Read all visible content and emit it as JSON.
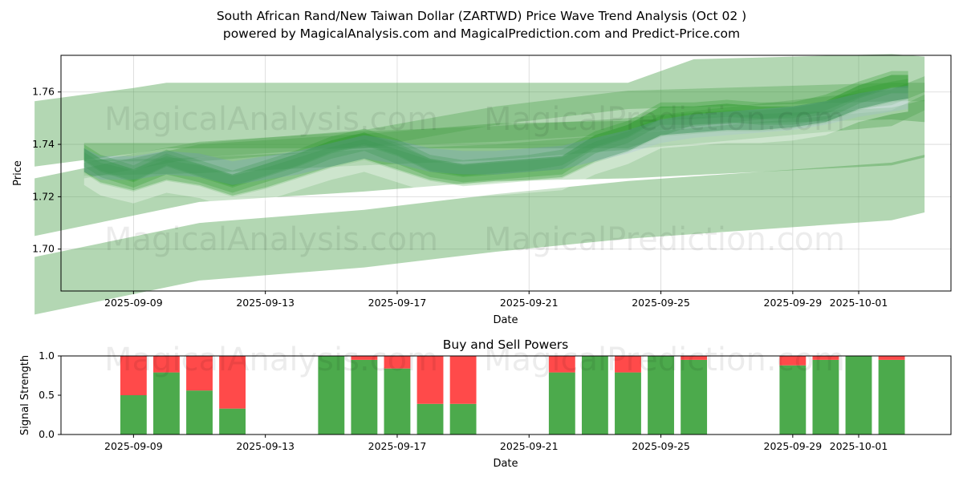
{
  "title_line1": "South African Rand/New Taiwan Dollar (ZARTWD) Price Wave Trend Analysis (Oct 02 )",
  "title_line2": "powered by MagicalAnalysis.com and MagicalPrediction.com and Predict-Price.com",
  "watermarks": [
    "MagicalAnalysis.com",
    "MagicalPrediction.com"
  ],
  "colors": {
    "band": "#2e9a2e",
    "light_band": "#4aa04a",
    "blue": "#6f8fd0",
    "buy": "#4caa4c",
    "sell": "#ff4a4a"
  },
  "chart_data": [
    {
      "type": "area",
      "title": "South African Rand/New Taiwan Dollar (ZARTWD) Price Wave Trend Analysis (Oct 02 )",
      "xlabel": "Date",
      "ylabel": "Price",
      "ylim": [
        1.684,
        1.774
      ],
      "xlim": [
        -1.2,
        25.8
      ],
      "x_ticks": [
        {
          "day": 1,
          "label": "2025-09-09"
        },
        {
          "day": 5,
          "label": "2025-09-13"
        },
        {
          "day": 9,
          "label": "2025-09-17"
        },
        {
          "day": 13,
          "label": "2025-09-21"
        },
        {
          "day": 17,
          "label": "2025-09-25"
        },
        {
          "day": 21,
          "label": "2025-09-29"
        },
        {
          "day": 23,
          "label": "2025-10-01"
        }
      ],
      "y_ticks": [
        1.7,
        1.72,
        1.74,
        1.76
      ],
      "x_days": [
        -1,
        0,
        1,
        2,
        3,
        4,
        5,
        6,
        7,
        8,
        9,
        10,
        11,
        12,
        13,
        14,
        15,
        16,
        17,
        18,
        19,
        20,
        21,
        22,
        23,
        24,
        25
      ],
      "price_waves": [
        {
          "name": "wave-1",
          "x": [
            -0.5,
            0,
            1,
            2,
            3,
            4,
            5,
            6,
            7,
            8,
            9,
            10,
            11,
            12,
            13,
            14,
            15,
            16,
            17,
            18,
            19,
            20,
            21,
            22,
            23,
            24,
            24.5
          ],
          "y": [
            1.735,
            1.731,
            1.727,
            1.732,
            1.729,
            1.725,
            1.729,
            1.733,
            1.738,
            1.741,
            1.736,
            1.731,
            1.729,
            1.73,
            1.731,
            1.732,
            1.74,
            1.744,
            1.751,
            1.751,
            1.752,
            1.751,
            1.751,
            1.753,
            1.759,
            1.763,
            1.763
          ],
          "width": 0.007
        },
        {
          "name": "wave-2",
          "x": [
            -0.5,
            0,
            1,
            2,
            3,
            4,
            5,
            6,
            7,
            8,
            9,
            10,
            11,
            12,
            13,
            14,
            15,
            16,
            17,
            18,
            19,
            20,
            21,
            22,
            23,
            24,
            24.5
          ],
          "y": [
            1.737,
            1.733,
            1.729,
            1.735,
            1.731,
            1.727,
            1.731,
            1.735,
            1.74,
            1.743,
            1.739,
            1.733,
            1.731,
            1.732,
            1.733,
            1.735,
            1.742,
            1.746,
            1.753,
            1.753,
            1.754,
            1.753,
            1.753,
            1.756,
            1.761,
            1.765,
            1.765
          ],
          "width": 0.006
        },
        {
          "name": "wave-3",
          "x": [
            -0.5,
            0,
            1,
            2,
            3,
            4,
            5,
            6,
            7,
            8,
            9,
            10,
            11,
            12,
            13,
            14,
            15,
            16,
            17,
            18,
            19,
            20,
            21,
            22,
            23,
            24,
            24.5
          ],
          "y": [
            1.733,
            1.729,
            1.726,
            1.73,
            1.728,
            1.724,
            1.727,
            1.731,
            1.735,
            1.738,
            1.734,
            1.73,
            1.728,
            1.729,
            1.73,
            1.731,
            1.737,
            1.741,
            1.747,
            1.748,
            1.749,
            1.749,
            1.75,
            1.752,
            1.757,
            1.76,
            1.761
          ],
          "width": 0.008
        },
        {
          "name": "wave-4",
          "x": [
            -0.5,
            0,
            1,
            2,
            3,
            4,
            5,
            6,
            7,
            8,
            9,
            10,
            11,
            12,
            13,
            14,
            15,
            16,
            17,
            18,
            19,
            20,
            21,
            22,
            23,
            24,
            24.5
          ],
          "y": [
            1.736,
            1.732,
            1.728,
            1.734,
            1.73,
            1.726,
            1.73,
            1.734,
            1.739,
            1.742,
            1.738,
            1.732,
            1.73,
            1.731,
            1.732,
            1.733,
            1.741,
            1.745,
            1.752,
            1.752,
            1.753,
            1.752,
            1.752,
            1.754,
            1.76,
            1.764,
            1.764
          ],
          "width": 0.005
        },
        {
          "name": "wave-5",
          "x": [
            -0.5,
            0,
            1,
            2,
            3,
            4,
            5,
            6,
            7,
            8,
            9,
            10,
            11,
            12,
            13,
            14,
            15,
            16,
            17,
            18,
            19,
            20,
            21,
            22,
            23,
            24,
            24.5
          ],
          "y": [
            1.734,
            1.731,
            1.731,
            1.733,
            1.732,
            1.729,
            1.731,
            1.733,
            1.736,
            1.739,
            1.737,
            1.734,
            1.733,
            1.733,
            1.734,
            1.735,
            1.738,
            1.741,
            1.745,
            1.747,
            1.748,
            1.749,
            1.75,
            1.752,
            1.755,
            1.757,
            1.758
          ],
          "width": 0.009
        }
      ],
      "trend_bands": [
        {
          "name": "band-upper",
          "x": [
            -2,
            1,
            2,
            3,
            9,
            13,
            16,
            18,
            24,
            25
          ],
          "y": [
            1.744,
            1.749,
            1.751,
            1.751,
            1.751,
            1.751,
            1.751,
            1.76,
            1.762,
            1.761
          ],
          "width": 0.025
        },
        {
          "name": "band-middle",
          "x": [
            -2,
            3,
            8,
            12,
            16,
            24,
            25
          ],
          "y": [
            1.716,
            1.729,
            1.733,
            1.737,
            1.738,
            1.743,
            1.746
          ],
          "width": 0.022
        },
        {
          "name": "band-lower",
          "x": [
            -2,
            3,
            8,
            12,
            16,
            24,
            25
          ],
          "y": [
            1.686,
            1.699,
            1.704,
            1.71,
            1.715,
            1.722,
            1.725
          ],
          "width": 0.022
        },
        {
          "name": "band-trend-1",
          "x": [
            -0.5,
            3,
            8,
            12,
            16,
            24,
            25
          ],
          "y": [
            1.73,
            1.738,
            1.742,
            1.744,
            1.747,
            1.758,
            1.763
          ],
          "width": 0.006
        },
        {
          "name": "band-trend-2",
          "x": [
            -0.5,
            3,
            8,
            12,
            16,
            24,
            25
          ],
          "y": [
            1.731,
            1.732,
            1.735,
            1.737,
            1.741,
            1.75,
            1.756
          ],
          "width": 0.006
        },
        {
          "name": "band-trend-3",
          "x": [
            -0.5,
            3,
            8,
            12,
            16,
            24,
            25
          ],
          "y": [
            1.737,
            1.737,
            1.742,
            1.751,
            1.757,
            1.76,
            1.76
          ],
          "width": 0.007
        }
      ]
    },
    {
      "type": "bar",
      "title": "Buy and Sell Powers",
      "xlabel": "Date",
      "ylabel": "Signal Strength",
      "ylim": [
        0,
        1.0
      ],
      "xlim": [
        -1.2,
        25.8
      ],
      "y_ticks": [
        0.0,
        0.5,
        1.0
      ],
      "y_tick_labels": [
        "0.0",
        "0.5",
        "1.0"
      ],
      "x_ticks": [
        {
          "day": 1,
          "label": "2025-09-09"
        },
        {
          "day": 5,
          "label": "2025-09-13"
        },
        {
          "day": 9,
          "label": "2025-09-17"
        },
        {
          "day": 13,
          "label": "2025-09-21"
        },
        {
          "day": 17,
          "label": "2025-09-25"
        },
        {
          "day": 21,
          "label": "2025-09-29"
        },
        {
          "day": 23,
          "label": "2025-10-01"
        }
      ],
      "series": [
        {
          "name": "Buy",
          "days": [
            1,
            2,
            3,
            4,
            7,
            8,
            9,
            10,
            11,
            14,
            15,
            16,
            17,
            18,
            21,
            22,
            23,
            24
          ],
          "values": [
            0.5,
            0.79,
            0.56,
            0.33,
            1.0,
            0.95,
            0.84,
            0.39,
            0.39,
            0.79,
            1.0,
            0.79,
            1.0,
            0.95,
            0.88,
            0.95,
            1.0,
            0.95
          ]
        },
        {
          "name": "Sell",
          "days": [
            1,
            2,
            3,
            4,
            7,
            8,
            9,
            10,
            11,
            14,
            15,
            16,
            17,
            18,
            21,
            22,
            23,
            24
          ],
          "values": [
            0.5,
            0.21,
            0.44,
            0.67,
            0.0,
            0.05,
            0.16,
            0.61,
            0.61,
            0.21,
            0.0,
            0.21,
            0.0,
            0.05,
            0.12,
            0.05,
            0.0,
            0.05
          ]
        }
      ]
    }
  ]
}
